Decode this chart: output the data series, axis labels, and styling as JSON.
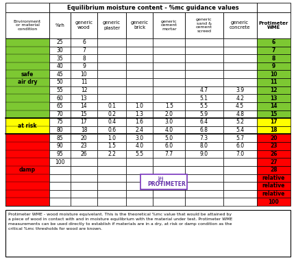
{
  "title": "Equilibrium moisture content - %mc guidance values",
  "col_headers_line1": [
    "Environment",
    "%rh",
    "generic",
    "generic",
    "generic",
    "generic",
    "generic",
    "generic",
    "Protimeter"
  ],
  "col_headers_line2": [
    "or material",
    "",
    "wood",
    "plaster",
    "brick",
    "cement",
    "sand &",
    "concrete",
    "WME"
  ],
  "col_headers_line3": [
    "condition",
    "",
    "",
    "",
    "",
    "mortar",
    "cement",
    "",
    ""
  ],
  "col_headers_line4": [
    "",
    "",
    "",
    "",
    "",
    "",
    "screed",
    "",
    ""
  ],
  "row_data": [
    {
      "env": "",
      "rh": "25",
      "wood": "6",
      "plaster": "",
      "brick": "",
      "mortar": "",
      "screed": "",
      "concrete": "",
      "wme": "6"
    },
    {
      "env": "",
      "rh": "30",
      "wood": "7",
      "plaster": "",
      "brick": "",
      "mortar": "",
      "screed": "",
      "concrete": "",
      "wme": "7"
    },
    {
      "env": "",
      "rh": "35",
      "wood": "8",
      "plaster": "",
      "brick": "",
      "mortar": "",
      "screed": "",
      "concrete": "",
      "wme": "8"
    },
    {
      "env": "",
      "rh": "40",
      "wood": "9",
      "plaster": "",
      "brick": "",
      "mortar": "",
      "screed": "",
      "concrete": "",
      "wme": "9"
    },
    {
      "env": "",
      "rh": "45",
      "wood": "10",
      "plaster": "",
      "brick": "",
      "mortar": "",
      "screed": "",
      "concrete": "",
      "wme": "10"
    },
    {
      "env": "safe\nair dry",
      "rh": "50",
      "wood": "11",
      "plaster": "",
      "brick": "",
      "mortar": "",
      "screed": "",
      "concrete": "",
      "wme": "11"
    },
    {
      "env": "",
      "rh": "55",
      "wood": "12",
      "plaster": "",
      "brick": "",
      "mortar": "",
      "screed": "4.7",
      "concrete": "3.9",
      "wme": "12"
    },
    {
      "env": "",
      "rh": "60",
      "wood": "13",
      "plaster": "",
      "brick": "",
      "mortar": "",
      "screed": "5.1",
      "concrete": "4.2",
      "wme": "13"
    },
    {
      "env": "",
      "rh": "65",
      "wood": "14",
      "plaster": "0.1",
      "brick": "1.0",
      "mortar": "1.5",
      "screed": "5.5",
      "concrete": "4.5",
      "wme": "14"
    },
    {
      "env": "",
      "rh": "70",
      "wood": "15",
      "plaster": "0.2",
      "brick": "1.3",
      "mortar": "2.0",
      "screed": "5.9",
      "concrete": "4.8",
      "wme": "15"
    },
    {
      "env": "at risk",
      "rh": "75",
      "wood": "17",
      "plaster": "0.4",
      "brick": "1.6",
      "mortar": "3.0",
      "screed": "6.4",
      "concrete": "5.2",
      "wme": "17"
    },
    {
      "env": "",
      "rh": "80",
      "wood": "18",
      "plaster": "0.6",
      "brick": "2.4",
      "mortar": "4.0",
      "screed": "6.8",
      "concrete": "5.4",
      "wme": "18"
    },
    {
      "env": "",
      "rh": "85",
      "wood": "20",
      "plaster": "1.0",
      "brick": "3.0",
      "mortar": "5.0",
      "screed": "7.3",
      "concrete": "5.7",
      "wme": "20"
    },
    {
      "env": "",
      "rh": "90",
      "wood": "23",
      "plaster": "1.5",
      "brick": "4.0",
      "mortar": "6.0",
      "screed": "8.0",
      "concrete": "6.0",
      "wme": "23"
    },
    {
      "env": "damp",
      "rh": "95",
      "wood": "26",
      "plaster": "2.2",
      "brick": "5.5",
      "mortar": "7.7",
      "screed": "9.0",
      "concrete": "7.0",
      "wme": "26"
    },
    {
      "env": "",
      "rh": "100",
      "wood": "",
      "plaster": "",
      "brick": "",
      "mortar": "",
      "screed": "",
      "concrete": "",
      "wme": "27"
    },
    {
      "env": "",
      "rh": "",
      "wood": "",
      "plaster": "",
      "brick": "",
      "mortar": "",
      "screed": "",
      "concrete": "",
      "wme": "28"
    },
    {
      "env": "",
      "rh": "",
      "wood": "",
      "plaster": "",
      "brick": "",
      "mortar": "",
      "screed": "",
      "concrete": "",
      "wme": "relative"
    },
    {
      "env": "",
      "rh": "",
      "wood": "",
      "plaster": "",
      "brick": "",
      "mortar": "",
      "screed": "",
      "concrete": "",
      "wme": "relative"
    },
    {
      "env": "",
      "rh": "",
      "wood": "",
      "plaster": "",
      "brick": "",
      "mortar": "",
      "screed": "",
      "concrete": "",
      "wme": "relative"
    },
    {
      "env": "",
      "rh": "",
      "wood": "",
      "plaster": "",
      "brick": "",
      "mortar": "",
      "screed": "",
      "concrete": "",
      "wme": "100"
    }
  ],
  "safe_rows": [
    0,
    1,
    2,
    3,
    4,
    5,
    6,
    7,
    8,
    9
  ],
  "atrisk_rows": [
    10,
    11
  ],
  "damp_rows": [
    12,
    13,
    14,
    15,
    16,
    17,
    18,
    19,
    20
  ],
  "env_label_row": {
    "4": "safe\nair dry",
    "10": "at risk",
    "15": "damp"
  },
  "color_green": "#7dc832",
  "color_yellow": "#ffff00",
  "color_red": "#ff0000",
  "footnote": "Protimeter WME - wood moisture equivelant. This is the theoretical %mc value that would be attained by\na piece of wood in contact with and in moisture equilibrium with the material under test. Protimeter WME\nmeasurements can be used directly to establish if materials are in a dry, at risk or damp condition as the\ncritical %mc thresholds for wood are known."
}
